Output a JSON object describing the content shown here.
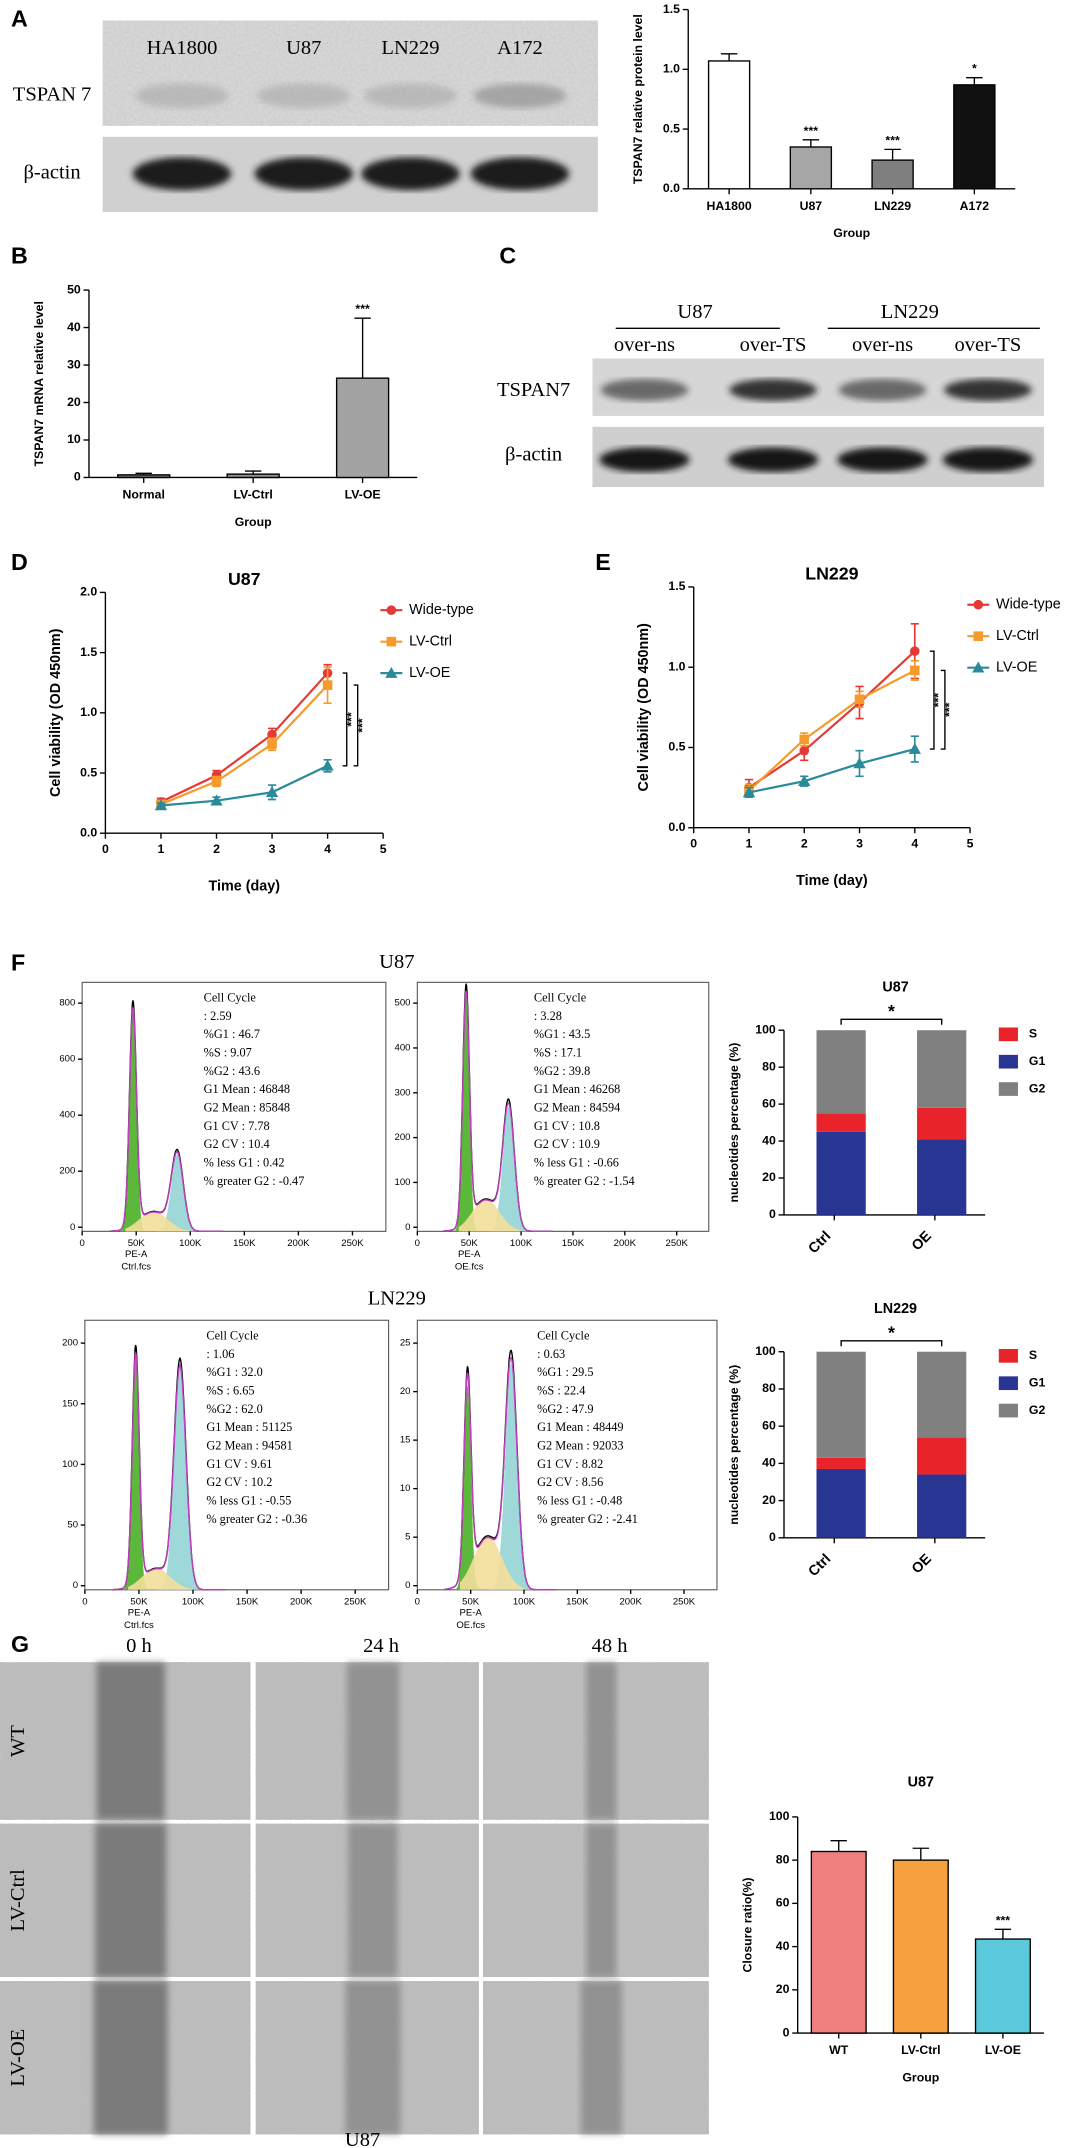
{
  "panel_letters": [
    "A",
    "B",
    "C",
    "D",
    "E",
    "F",
    "G"
  ],
  "blot_a": {
    "lanes": [
      "HA1800",
      "U87",
      "LN229",
      "A172"
    ],
    "rows": [
      "TSPAN 7",
      "β-actin"
    ]
  },
  "blot_c": {
    "groups": [
      "U87",
      "LN229"
    ],
    "lanes": [
      "over-ns",
      "over-TS",
      "over-ns",
      "over-TS"
    ],
    "rows": [
      "TSPAN7",
      "β-actin"
    ]
  },
  "flow": {
    "titles": [
      "U87",
      "LN229"
    ],
    "panels": [
      {
        "yticks": [
          "0",
          "200",
          "400",
          "600",
          "800"
        ],
        "xticks": [
          "0",
          "50K",
          "100K",
          "150K",
          "200K",
          "250K"
        ],
        "xlabel": "PE-A",
        "file": "Ctrl.fcs",
        "stats": [
          "Cell Cycle",
          ": 2.59",
          "%G1  : 46.7",
          "%S  : 9.07",
          "%G2  : 43.6",
          "G1 Mean  : 46848",
          "G2 Mean  : 85848",
          "G1 CV  : 7.78",
          "G2 CV  : 10.4",
          "% less G1  : 0.42",
          "% greater G2  : -0.47"
        ]
      },
      {
        "yticks": [
          "0",
          "100",
          "200",
          "300",
          "400",
          "500"
        ],
        "xticks": [
          "0",
          "50K",
          "100K",
          "150K",
          "200K",
          "250K"
        ],
        "xlabel": "PE-A",
        "file": "OE.fcs",
        "stats": [
          "Cell Cycle",
          ": 3.28",
          "%G1  : 43.5",
          "%S  : 17.1",
          "%G2  : 39.8",
          "G1 Mean  : 46268",
          "G2 Mean  : 84594",
          "G1 CV  : 10.8",
          "G2 CV  : 10.9",
          "% less G1  : -0.66",
          "% greater G2  : -1.54"
        ]
      },
      {
        "yticks": [
          "0",
          "50",
          "100",
          "150",
          "200"
        ],
        "xticks": [
          "0",
          "50K",
          "100K",
          "150K",
          "200K",
          "250K"
        ],
        "xlabel": "PE-A",
        "file": "Ctrl.fcs",
        "stats": [
          "Cell Cycle",
          ": 1.06",
          "%G1  : 32.0",
          "%S  : 6.65",
          "%G2  : 62.0",
          "G1 Mean  : 51125",
          "G2 Mean  : 94581",
          "G1 CV  : 9.61",
          "G2 CV  : 10.2",
          "% less G1  : -0.55",
          "% greater G2  : -0.36"
        ]
      },
      {
        "yticks": [
          "0",
          "5",
          "10",
          "15",
          "20",
          "25"
        ],
        "xticks": [
          "0",
          "50K",
          "100K",
          "150K",
          "200K",
          "250K"
        ],
        "xlabel": "PE-A",
        "file": "OE.fcs",
        "stats": [
          "Cell Cycle",
          ": 0.63",
          "%G1  : 29.5",
          "%S  : 22.4",
          "%G2  : 47.9",
          "G1 Mean  : 48449",
          "G2 Mean  : 92033",
          "G1 CV  : 8.82",
          "G2 CV  : 8.56",
          "% less G1  : -0.48",
          "% greater G2  : -2.41"
        ]
      }
    ]
  },
  "wound": {
    "times": [
      "0 h",
      "24 h",
      "48 h"
    ],
    "rows": [
      "WT",
      "LV-Ctrl",
      "LV-OE"
    ],
    "caption": "U87"
  },
  "chart_data": [
    {
      "type": "bar",
      "categories": [
        "HA1800",
        "U87",
        "LN229",
        "A172"
      ],
      "values": [
        1.07,
        0.35,
        0.24,
        0.87
      ],
      "errors": [
        0.06,
        0.06,
        0.09,
        0.06
      ],
      "colors": [
        "#ffffff",
        "#a6a6a6",
        "#7f7f7f",
        "#111111"
      ],
      "annotations": [
        null,
        "***",
        "***",
        "*"
      ],
      "ylim": [
        0,
        1.5
      ],
      "yticks": [
        {
          "value": 0,
          "label": "0.0"
        },
        0.5,
        {
          "value": 1,
          "label": "1.0"
        },
        1.5
      ],
      "ylabel": "TSPAN7 relative protein level",
      "xlabel": "Group"
    },
    {
      "type": "bar",
      "categories": [
        "Normal",
        "LV-Ctrl",
        "LV-OE"
      ],
      "values": [
        0.7,
        0.9,
        26.5
      ],
      "errors": [
        0.4,
        0.8,
        16
      ],
      "colors": [
        "#6e6e6e",
        "#8e8e8e",
        "#a3a3a3"
      ],
      "annotations": [
        null,
        null,
        "***"
      ],
      "ylim": [
        0,
        50
      ],
      "yticks": [
        0,
        10,
        20,
        30,
        40,
        50
      ],
      "ylabel": "TSPAN7 mRNA relative level",
      "xlabel": "Group"
    },
    {
      "type": "line",
      "title": "U87",
      "x": [
        1,
        2,
        3,
        4
      ],
      "xlim": [
        0,
        5
      ],
      "xticks": [
        0,
        1,
        2,
        3,
        4,
        5
      ],
      "ylim": [
        0,
        2
      ],
      "yticks": [
        {
          "value": 0,
          "label": "0.0"
        },
        0.5,
        {
          "value": 1,
          "label": "1.0"
        },
        1.5,
        {
          "value": 2,
          "label": "2.0"
        }
      ],
      "series": [
        {
          "name": "Wide-type",
          "color": "#e53935",
          "marker": "circle",
          "values": [
            0.26,
            0.48,
            0.82,
            1.33
          ],
          "errors": [
            0.03,
            0.04,
            0.05,
            0.07
          ]
        },
        {
          "name": "LV-Ctrl",
          "color": "#f59b2b",
          "marker": "square",
          "values": [
            0.24,
            0.43,
            0.74,
            1.23
          ],
          "errors": [
            0.03,
            0.04,
            0.05,
            0.15
          ]
        },
        {
          "name": "LV-OE",
          "color": "#2a8a9a",
          "marker": "triangle",
          "values": [
            0.23,
            0.27,
            0.34,
            0.56
          ],
          "errors": [
            0.02,
            0.03,
            0.06,
            0.05
          ]
        }
      ],
      "annotations": [
        "***",
        "***"
      ],
      "ylabel": "Cell viability (OD 450nm)",
      "xlabel": "Time (day)",
      "legend": "right"
    },
    {
      "type": "line",
      "title": "LN229",
      "x": [
        1,
        2,
        3,
        4
      ],
      "xlim": [
        0,
        5
      ],
      "xticks": [
        0,
        1,
        2,
        3,
        4,
        5
      ],
      "ylim": [
        0,
        1.5
      ],
      "yticks": [
        {
          "value": 0,
          "label": "0.0"
        },
        0.5,
        {
          "value": 1,
          "label": "1.0"
        },
        1.5
      ],
      "series": [
        {
          "name": "Wide-type",
          "color": "#e53935",
          "marker": "circle",
          "values": [
            0.25,
            0.48,
            0.78,
            1.1
          ],
          "errors": [
            0.05,
            0.06,
            0.1,
            0.17
          ]
        },
        {
          "name": "LV-Ctrl",
          "color": "#f59b2b",
          "marker": "square",
          "values": [
            0.23,
            0.55,
            0.8,
            0.98
          ],
          "errors": [
            0.04,
            0.04,
            0.05,
            0.06
          ]
        },
        {
          "name": "LV-OE",
          "color": "#2a8a9a",
          "marker": "triangle",
          "values": [
            0.22,
            0.29,
            0.4,
            0.49
          ],
          "errors": [
            0.03,
            0.03,
            0.08,
            0.08
          ]
        }
      ],
      "annotations": [
        "***",
        "***"
      ],
      "ylabel": "Cell viability (OD 450nm)",
      "xlabel": "Time (day)",
      "legend": "right"
    },
    {
      "type": "stacked_bar",
      "title": "U87",
      "categories": [
        "Ctrl",
        "OE"
      ],
      "series": [
        {
          "name": "S",
          "color": "#e8232a",
          "values": [
            10,
            17
          ]
        },
        {
          "name": "G1",
          "color": "#283593",
          "values": [
            45,
            41
          ]
        },
        {
          "name": "G2",
          "color": "#808080",
          "values": [
            45,
            42
          ]
        }
      ],
      "annotation": "*",
      "ylim": [
        0,
        100
      ],
      "yticks": [
        0,
        20,
        40,
        60,
        80,
        100
      ],
      "ylabel": "nucleotides percentage (%)",
      "legend": "right"
    },
    {
      "type": "stacked_bar",
      "title": "LN229",
      "categories": [
        "Ctrl",
        "OE"
      ],
      "series": [
        {
          "name": "S",
          "color": "#e8232a",
          "values": [
            6,
            20
          ]
        },
        {
          "name": "G1",
          "color": "#283593",
          "values": [
            37,
            34
          ]
        },
        {
          "name": "G2",
          "color": "#808080",
          "values": [
            57,
            46
          ]
        }
      ],
      "annotation": "*",
      "ylim": [
        0,
        100
      ],
      "yticks": [
        0,
        20,
        40,
        60,
        80,
        100
      ],
      "ylabel": "nucleotides percentage (%)",
      "legend": "right"
    },
    {
      "type": "bar",
      "title": "U87",
      "categories": [
        "WT",
        "LV-Ctrl",
        "LV-OE"
      ],
      "values": [
        84,
        80,
        43.5
      ],
      "errors": [
        5,
        5.5,
        4.5
      ],
      "colors": [
        "#f08080",
        "#f7a040",
        "#5bc8dc"
      ],
      "annotations": [
        null,
        null,
        "***"
      ],
      "ylim": [
        0,
        100
      ],
      "yticks": [
        0,
        20,
        40,
        60,
        80,
        100
      ],
      "ylabel": "Closure ratio(%)",
      "xlabel": "Group"
    }
  ]
}
